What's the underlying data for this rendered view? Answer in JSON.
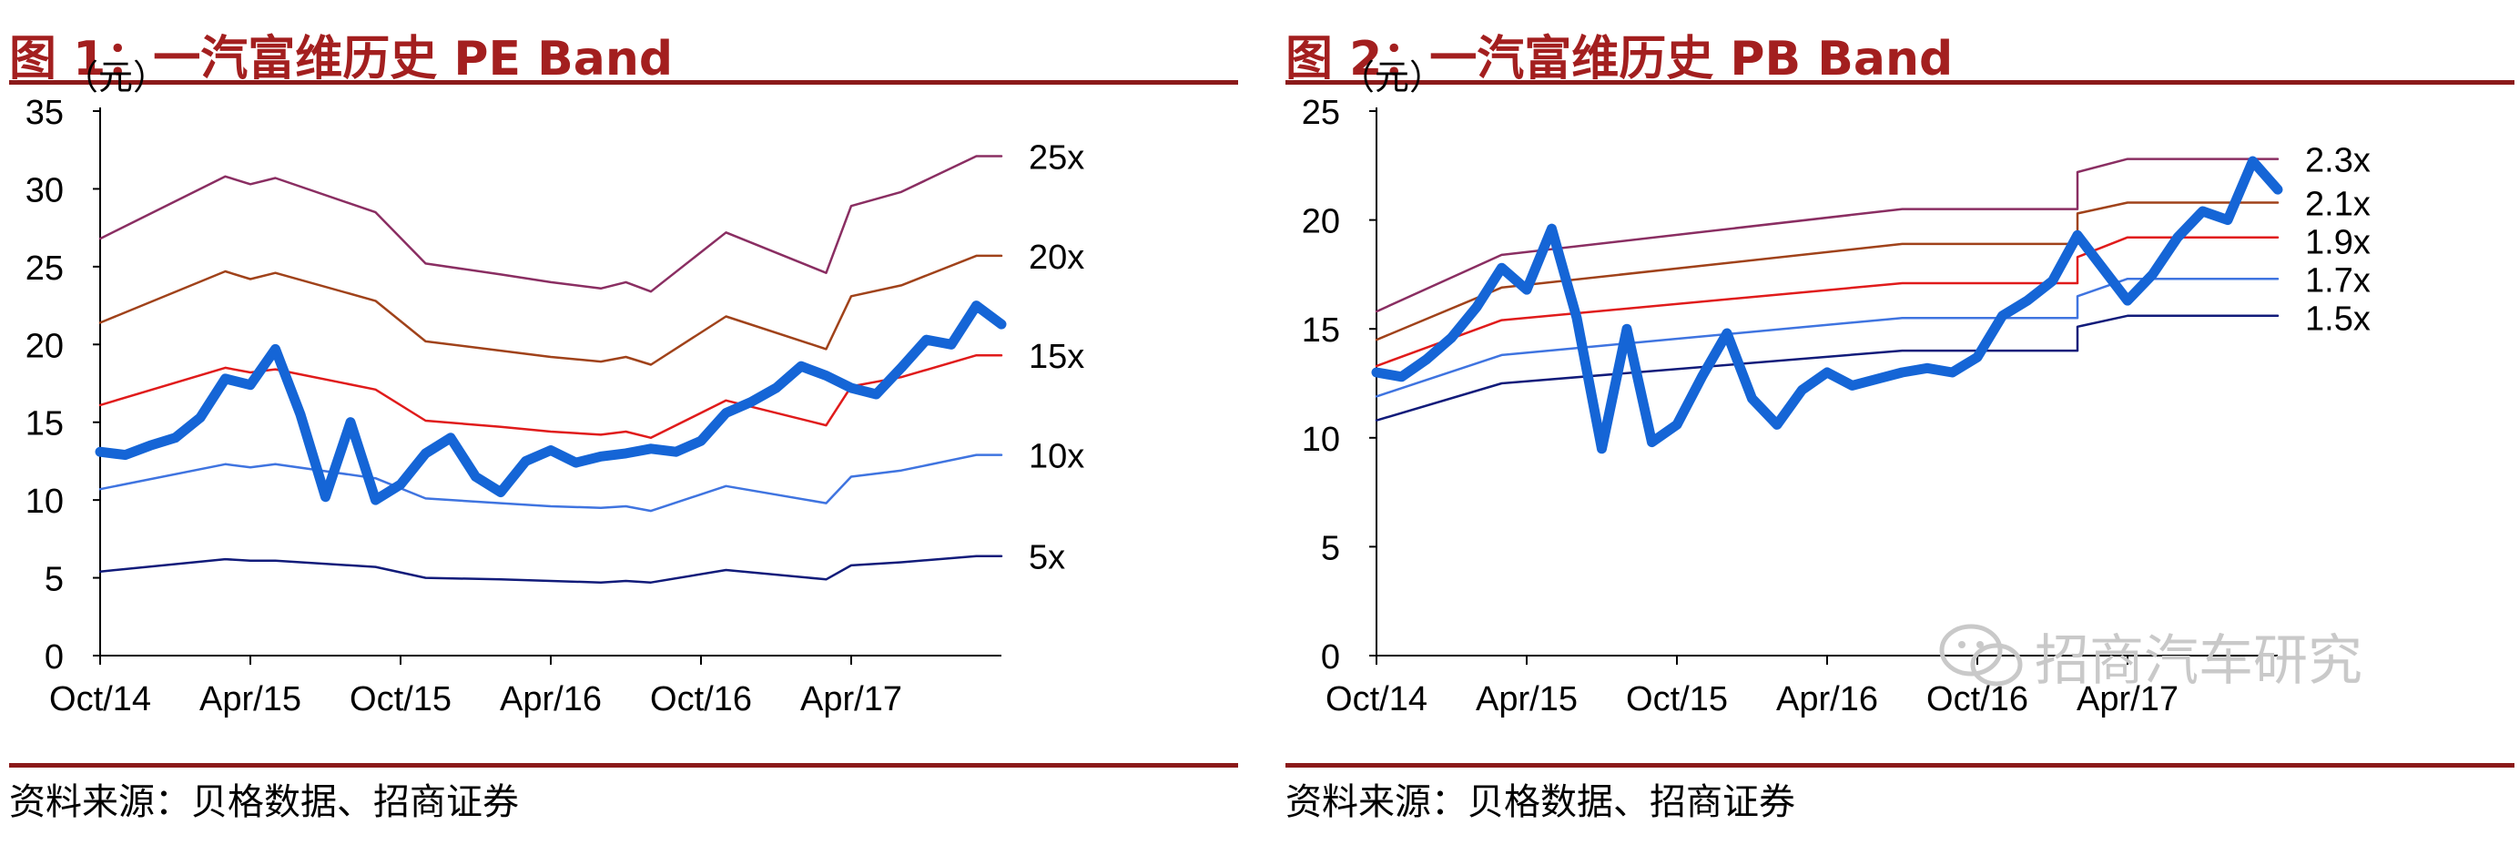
{
  "panels": [
    {
      "title": "图 1：一汽富维历史 PE Band",
      "source": "资料来源：贝格数据、招商证券"
    },
    {
      "title": "图 2：一汽富维历史 PB Band",
      "source": "资料来源：贝格数据、招商证券"
    }
  ],
  "watermark": "招商汽车研究",
  "colors": {
    "title_red": "#a31f1f",
    "price_line": "#1565d6",
    "band_navy": "#111b7a",
    "band_light_blue": "#3f74e0",
    "band_red": "#e01b1b",
    "band_brown": "#a0421a",
    "band_purple": "#8a2e62"
  },
  "chart_data": [
    {
      "type": "line",
      "ylabel": "（元）",
      "ylim": [
        0,
        35
      ],
      "yticks": [
        0,
        5,
        10,
        15,
        20,
        25,
        30,
        35
      ],
      "x_tick_labels": [
        "Oct/14",
        "Apr/15",
        "Oct/15",
        "Apr/16",
        "Oct/16",
        "Apr/17"
      ],
      "x_range": [
        "2014-10",
        "2017-10"
      ],
      "grid": false,
      "series": [
        {
          "name": "25x",
          "color": "#8a2e62",
          "points": [
            [
              "2014-10",
              26.8
            ],
            [
              "2015-03",
              30.8
            ],
            [
              "2015-04",
              30.3
            ],
            [
              "2015-05",
              30.7
            ],
            [
              "2015-09",
              28.5
            ],
            [
              "2015-11",
              25.2
            ],
            [
              "2016-02",
              24.5
            ],
            [
              "2016-04",
              24.0
            ],
            [
              "2016-06",
              23.6
            ],
            [
              "2016-07",
              24.0
            ],
            [
              "2016-08",
              23.4
            ],
            [
              "2016-11",
              27.2
            ],
            [
              "2017-03",
              24.6
            ],
            [
              "2017-04",
              28.9
            ],
            [
              "2017-06",
              29.8
            ],
            [
              "2017-09",
              32.1
            ],
            [
              "2017-10",
              32.1
            ]
          ]
        },
        {
          "name": "20x",
          "color": "#a0421a",
          "points": [
            [
              "2014-10",
              21.4
            ],
            [
              "2015-03",
              24.7
            ],
            [
              "2015-04",
              24.2
            ],
            [
              "2015-05",
              24.6
            ],
            [
              "2015-09",
              22.8
            ],
            [
              "2015-11",
              20.2
            ],
            [
              "2016-02",
              19.6
            ],
            [
              "2016-04",
              19.2
            ],
            [
              "2016-06",
              18.9
            ],
            [
              "2016-07",
              19.2
            ],
            [
              "2016-08",
              18.7
            ],
            [
              "2016-11",
              21.8
            ],
            [
              "2017-03",
              19.7
            ],
            [
              "2017-04",
              23.1
            ],
            [
              "2017-06",
              23.8
            ],
            [
              "2017-09",
              25.7
            ],
            [
              "2017-10",
              25.7
            ]
          ]
        },
        {
          "name": "15x",
          "color": "#e01b1b",
          "points": [
            [
              "2014-10",
              16.1
            ],
            [
              "2015-03",
              18.5
            ],
            [
              "2015-04",
              18.2
            ],
            [
              "2015-05",
              18.4
            ],
            [
              "2015-09",
              17.1
            ],
            [
              "2015-11",
              15.1
            ],
            [
              "2016-02",
              14.7
            ],
            [
              "2016-04",
              14.4
            ],
            [
              "2016-06",
              14.2
            ],
            [
              "2016-07",
              14.4
            ],
            [
              "2016-08",
              14.0
            ],
            [
              "2016-11",
              16.4
            ],
            [
              "2017-03",
              14.8
            ],
            [
              "2017-04",
              17.3
            ],
            [
              "2017-06",
              17.9
            ],
            [
              "2017-09",
              19.3
            ],
            [
              "2017-10",
              19.3
            ]
          ]
        },
        {
          "name": "10x",
          "color": "#3f74e0",
          "points": [
            [
              "2014-10",
              10.7
            ],
            [
              "2015-03",
              12.3
            ],
            [
              "2015-04",
              12.1
            ],
            [
              "2015-05",
              12.3
            ],
            [
              "2015-09",
              11.4
            ],
            [
              "2015-11",
              10.1
            ],
            [
              "2016-02",
              9.8
            ],
            [
              "2016-04",
              9.6
            ],
            [
              "2016-06",
              9.5
            ],
            [
              "2016-07",
              9.6
            ],
            [
              "2016-08",
              9.3
            ],
            [
              "2016-11",
              10.9
            ],
            [
              "2017-03",
              9.8
            ],
            [
              "2017-04",
              11.5
            ],
            [
              "2017-06",
              11.9
            ],
            [
              "2017-09",
              12.9
            ],
            [
              "2017-10",
              12.9
            ]
          ]
        },
        {
          "name": "5x",
          "color": "#111b7a",
          "points": [
            [
              "2014-10",
              5.4
            ],
            [
              "2015-03",
              6.2
            ],
            [
              "2015-04",
              6.1
            ],
            [
              "2015-05",
              6.1
            ],
            [
              "2015-09",
              5.7
            ],
            [
              "2015-11",
              5.0
            ],
            [
              "2016-02",
              4.9
            ],
            [
              "2016-04",
              4.8
            ],
            [
              "2016-06",
              4.7
            ],
            [
              "2016-07",
              4.8
            ],
            [
              "2016-08",
              4.7
            ],
            [
              "2016-11",
              5.5
            ],
            [
              "2017-03",
              4.9
            ],
            [
              "2017-04",
              5.8
            ],
            [
              "2017-06",
              6.0
            ],
            [
              "2017-09",
              6.4
            ],
            [
              "2017-10",
              6.4
            ]
          ]
        },
        {
          "name": "",
          "color": "#1565d6",
          "points": [
            [
              "2014-10",
              13.1
            ],
            [
              "2014-11",
              12.9
            ],
            [
              "2014-12",
              13.5
            ],
            [
              "2015-01",
              14.0
            ],
            [
              "2015-02",
              15.3
            ],
            [
              "2015-03",
              17.8
            ],
            [
              "2015-04",
              17.4
            ],
            [
              "2015-05",
              19.7
            ],
            [
              "2015-06",
              15.5
            ],
            [
              "2015-07",
              10.2
            ],
            [
              "2015-08",
              15.0
            ],
            [
              "2015-09",
              10.0
            ],
            [
              "2015-10",
              11.0
            ],
            [
              "2015-11",
              13.0
            ],
            [
              "2015-12",
              14.0
            ],
            [
              "2016-01",
              11.5
            ],
            [
              "2016-02",
              10.5
            ],
            [
              "2016-03",
              12.5
            ],
            [
              "2016-04",
              13.2
            ],
            [
              "2016-05",
              12.4
            ],
            [
              "2016-06",
              12.8
            ],
            [
              "2016-07",
              13.0
            ],
            [
              "2016-08",
              13.3
            ],
            [
              "2016-09",
              13.1
            ],
            [
              "2016-10",
              13.8
            ],
            [
              "2016-11",
              15.6
            ],
            [
              "2016-12",
              16.3
            ],
            [
              "2017-01",
              17.2
            ],
            [
              "2017-02",
              18.6
            ],
            [
              "2017-03",
              18.0
            ],
            [
              "2017-04",
              17.2
            ],
            [
              "2017-05",
              16.8
            ],
            [
              "2017-06",
              18.5
            ],
            [
              "2017-07",
              20.3
            ],
            [
              "2017-08",
              20.0
            ],
            [
              "2017-09",
              22.5
            ],
            [
              "2017-10",
              21.3
            ]
          ]
        }
      ]
    },
    {
      "type": "line",
      "ylabel": "（元）",
      "ylim": [
        0,
        25
      ],
      "yticks": [
        0,
        5,
        10,
        15,
        20,
        25
      ],
      "x_tick_labels": [
        "Oct/14",
        "Apr/15",
        "Oct/15",
        "Apr/16",
        "Oct/16",
        "Apr/17"
      ],
      "x_range": [
        "2014-10",
        "2017-10"
      ],
      "grid": false,
      "series": [
        {
          "name": "2.3x",
          "color": "#8a2e62",
          "points": [
            [
              "2014-10",
              15.8
            ],
            [
              "2015-03",
              18.4
            ],
            [
              "2016-07",
              20.5
            ],
            [
              "2017-02",
              20.5
            ],
            [
              "2017-02",
              22.2
            ],
            [
              "2017-04",
              22.8
            ],
            [
              "2017-10",
              22.8
            ]
          ]
        },
        {
          "name": "2.1x",
          "color": "#a0421a",
          "points": [
            [
              "2014-10",
              14.5
            ],
            [
              "2015-03",
              16.9
            ],
            [
              "2016-07",
              18.9
            ],
            [
              "2017-02",
              18.9
            ],
            [
              "2017-02",
              20.3
            ],
            [
              "2017-04",
              20.8
            ],
            [
              "2017-10",
              20.8
            ]
          ]
        },
        {
          "name": "1.9x",
          "color": "#e01b1b",
          "points": [
            [
              "2014-10",
              13.3
            ],
            [
              "2015-03",
              15.4
            ],
            [
              "2016-07",
              17.1
            ],
            [
              "2017-02",
              17.1
            ],
            [
              "2017-02",
              18.3
            ],
            [
              "2017-04",
              19.2
            ],
            [
              "2017-10",
              19.2
            ]
          ]
        },
        {
          "name": "1.7x",
          "color": "#3f74e0",
          "points": [
            [
              "2014-10",
              11.9
            ],
            [
              "2015-03",
              13.8
            ],
            [
              "2016-07",
              15.5
            ],
            [
              "2017-02",
              15.5
            ],
            [
              "2017-02",
              16.5
            ],
            [
              "2017-04",
              17.3
            ],
            [
              "2017-10",
              17.3
            ]
          ]
        },
        {
          "name": "1.5x",
          "color": "#111b7a",
          "points": [
            [
              "2014-10",
              10.8
            ],
            [
              "2015-03",
              12.5
            ],
            [
              "2016-07",
              14.0
            ],
            [
              "2017-02",
              14.0
            ],
            [
              "2017-02",
              15.1
            ],
            [
              "2017-04",
              15.6
            ],
            [
              "2017-10",
              15.6
            ]
          ]
        },
        {
          "name": "",
          "color": "#1565d6",
          "points": [
            [
              "2014-10",
              13.0
            ],
            [
              "2014-11",
              12.8
            ],
            [
              "2014-12",
              13.6
            ],
            [
              "2015-01",
              14.6
            ],
            [
              "2015-02",
              16.0
            ],
            [
              "2015-03",
              17.8
            ],
            [
              "2015-04",
              16.8
            ],
            [
              "2015-05",
              19.6
            ],
            [
              "2015-06",
              15.5
            ],
            [
              "2015-07",
              9.5
            ],
            [
              "2015-08",
              15.0
            ],
            [
              "2015-09",
              9.8
            ],
            [
              "2015-10",
              10.6
            ],
            [
              "2015-11",
              12.8
            ],
            [
              "2015-12",
              14.8
            ],
            [
              "2016-01",
              11.8
            ],
            [
              "2016-02",
              10.6
            ],
            [
              "2016-03",
              12.2
            ],
            [
              "2016-04",
              13.0
            ],
            [
              "2016-05",
              12.4
            ],
            [
              "2016-06",
              12.7
            ],
            [
              "2016-07",
              13.0
            ],
            [
              "2016-08",
              13.2
            ],
            [
              "2016-09",
              13.0
            ],
            [
              "2016-10",
              13.7
            ],
            [
              "2016-11",
              15.6
            ],
            [
              "2016-12",
              16.3
            ],
            [
              "2017-01",
              17.2
            ],
            [
              "2017-02",
              19.3
            ],
            [
              "2017-03",
              17.8
            ],
            [
              "2017-04",
              16.3
            ],
            [
              "2017-05",
              17.5
            ],
            [
              "2017-06",
              19.2
            ],
            [
              "2017-07",
              20.4
            ],
            [
              "2017-08",
              20.0
            ],
            [
              "2017-09",
              22.7
            ],
            [
              "2017-10",
              21.4
            ]
          ]
        }
      ]
    }
  ]
}
